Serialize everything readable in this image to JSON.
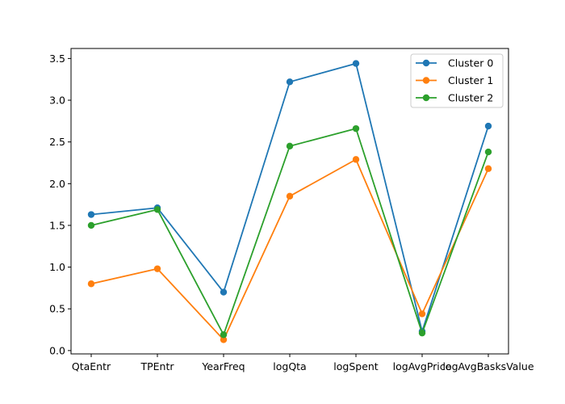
{
  "chart_data": {
    "type": "line",
    "title": "",
    "xlabel": "",
    "ylabel": "",
    "categories": [
      "QtaEntr",
      "TPEntr",
      "YearFreq",
      "logQta",
      "logSpent",
      "logAvgPrice",
      "logAvgBasksValue"
    ],
    "ylim": [
      -0.04,
      3.62
    ],
    "yticks": [
      "0.0",
      "0.5",
      "1.0",
      "1.5",
      "2.0",
      "2.5",
      "3.0",
      "3.5"
    ],
    "grid": false,
    "legend_position": "top-right",
    "series": [
      {
        "name": "Cluster 0",
        "color": "#1f77b4",
        "values": [
          1.63,
          1.71,
          0.7,
          3.22,
          3.44,
          0.23,
          2.69
        ]
      },
      {
        "name": "Cluster 1",
        "color": "#ff7f0e",
        "values": [
          0.8,
          0.98,
          0.13,
          1.85,
          2.29,
          0.44,
          2.18
        ]
      },
      {
        "name": "Cluster 2",
        "color": "#2ca02c",
        "values": [
          1.5,
          1.69,
          0.19,
          2.45,
          2.66,
          0.21,
          2.38
        ]
      }
    ]
  }
}
